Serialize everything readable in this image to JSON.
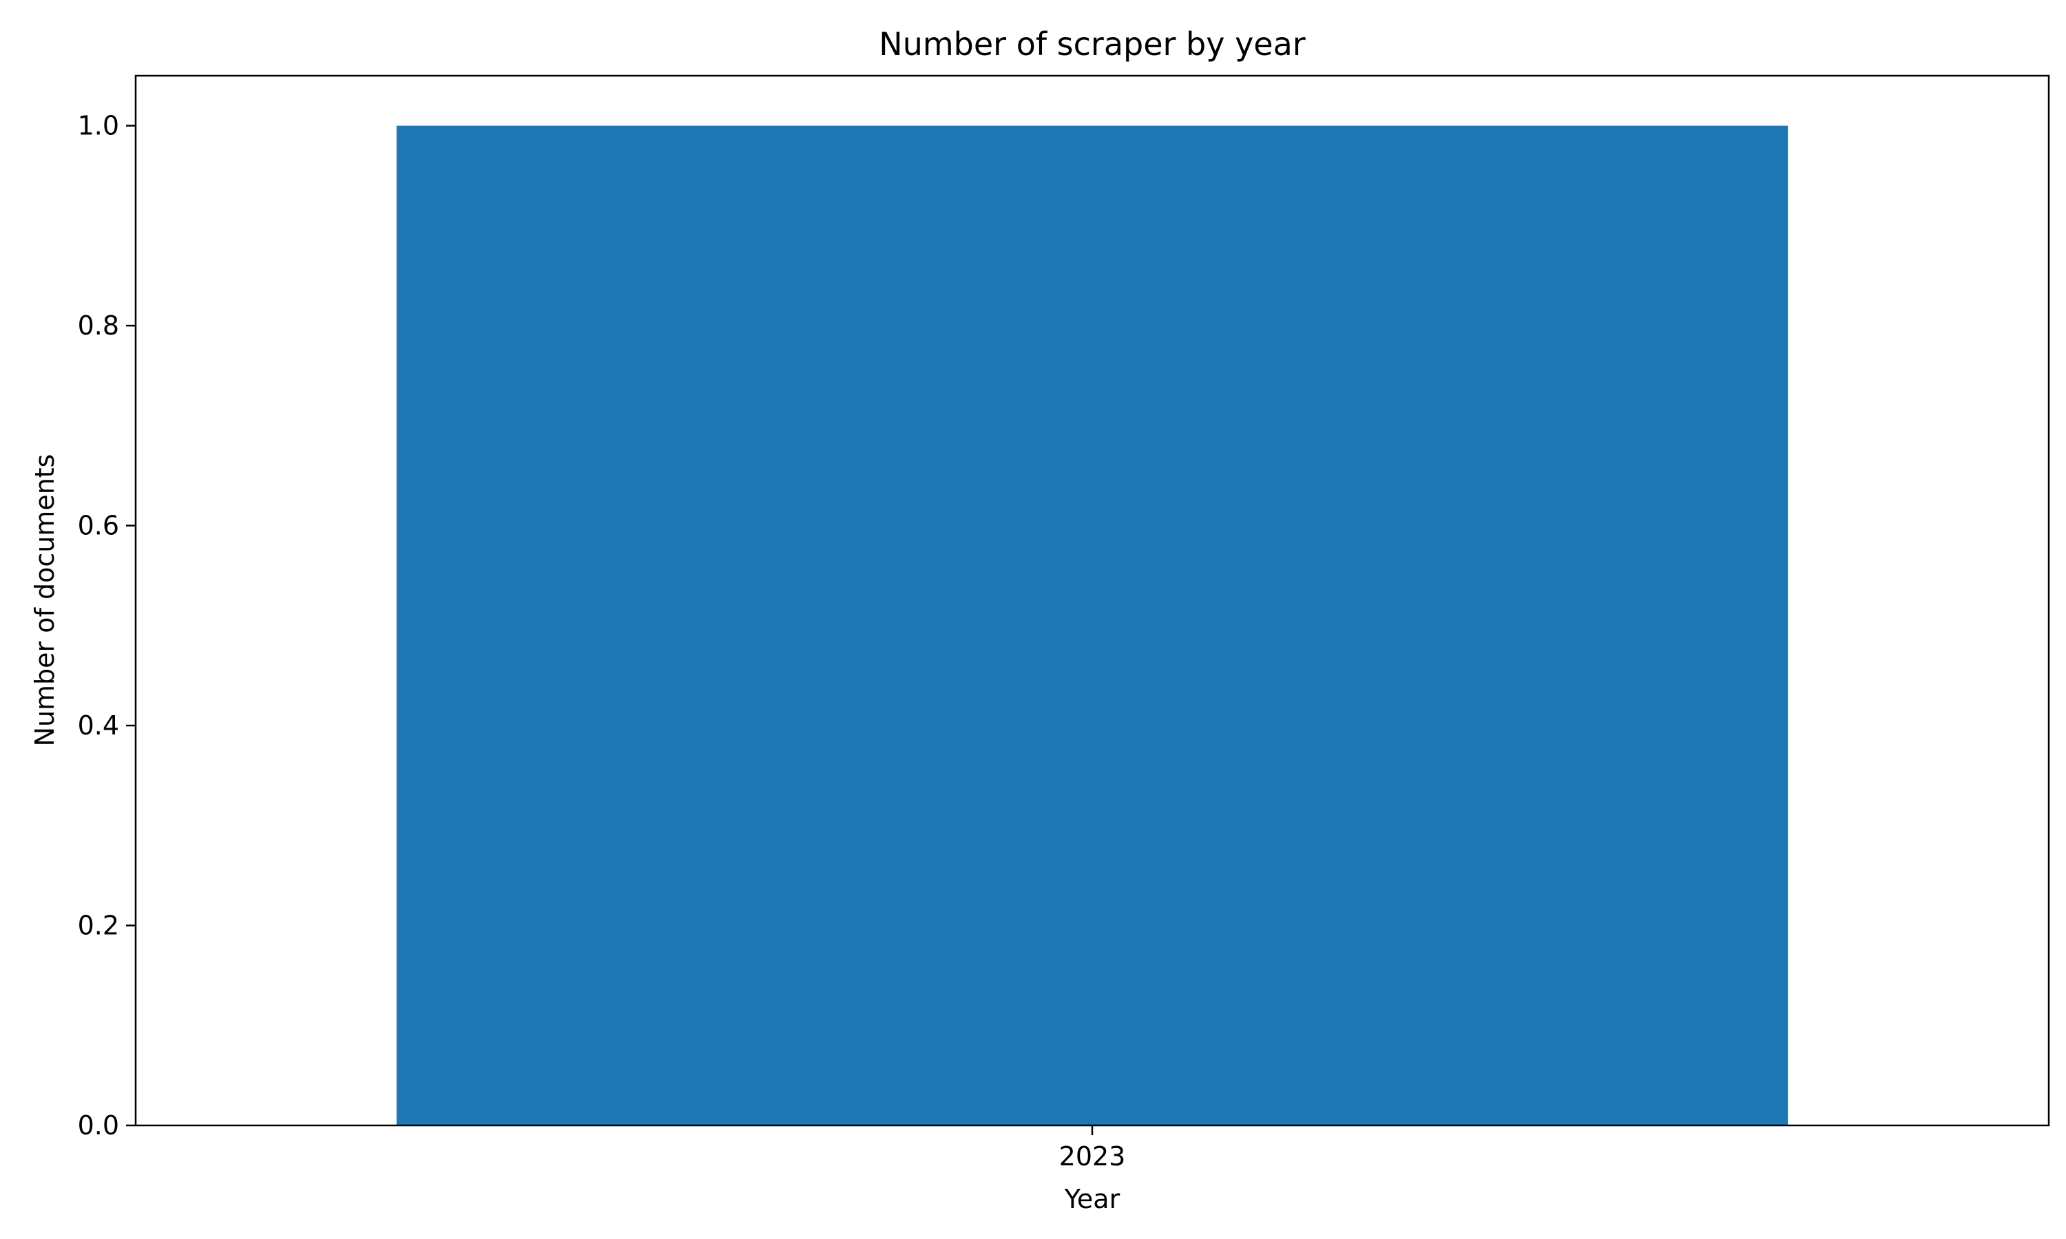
{
  "chart_data": {
    "type": "bar",
    "title": "Number of scraper by year",
    "xlabel": "Year",
    "ylabel": "Number of documents",
    "categories": [
      "2023"
    ],
    "values": [
      1.0
    ],
    "ylim": [
      0,
      1.05
    ],
    "yticks": [
      "0.0",
      "0.2",
      "0.4",
      "0.6",
      "0.8",
      "1.0"
    ],
    "ytick_values": [
      0.0,
      0.2,
      0.4,
      0.6,
      0.8,
      1.0
    ],
    "bar_color": "#1f77b4",
    "grid": false,
    "legend": false
  }
}
